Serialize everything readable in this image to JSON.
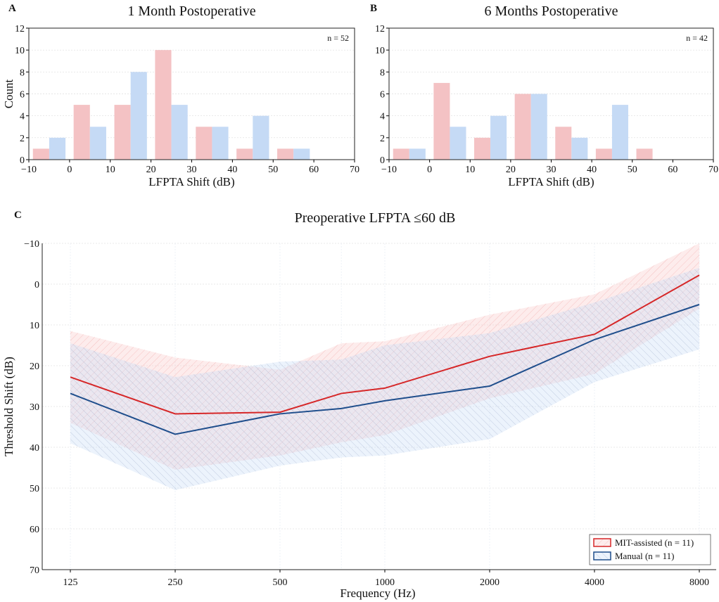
{
  "chart_data": [
    {
      "panel": "A",
      "type": "bar",
      "title": "1 Month Postoperative",
      "annotation": "n = 52",
      "xlabel": "LFPTA Shift (dB)",
      "ylabel": "Count",
      "xlim": [
        -10,
        70
      ],
      "ylim": [
        0,
        12
      ],
      "xticks": [
        -10,
        0,
        10,
        20,
        30,
        40,
        50,
        60,
        70
      ],
      "yticks": [
        0,
        2,
        4,
        6,
        8,
        10,
        12
      ],
      "bin_starts": [
        -10,
        0,
        10,
        20,
        30,
        40,
        50,
        60
      ],
      "series": [
        {
          "name": "MIT-assisted",
          "color": "#f4c2c4",
          "values": [
            1,
            5,
            5,
            10,
            3,
            1,
            1,
            0
          ]
        },
        {
          "name": "Manual",
          "color": "#c5daf5",
          "values": [
            2,
            3,
            8,
            5,
            3,
            4,
            1,
            0
          ]
        }
      ]
    },
    {
      "panel": "B",
      "type": "bar",
      "title": "6 Months Postoperative",
      "annotation": "n = 42",
      "xlabel": "LFPTA Shift (dB)",
      "ylabel": "",
      "xlim": [
        -10,
        70
      ],
      "ylim": [
        0,
        12
      ],
      "xticks": [
        -10,
        0,
        10,
        20,
        30,
        40,
        50,
        60,
        70
      ],
      "yticks": [
        0,
        2,
        4,
        6,
        8,
        10,
        12
      ],
      "bin_starts": [
        -10,
        0,
        10,
        20,
        30,
        40,
        50,
        60
      ],
      "series": [
        {
          "name": "MIT-assisted",
          "color": "#f4c2c4",
          "values": [
            1,
            7,
            2,
            6,
            3,
            1,
            1,
            0
          ]
        },
        {
          "name": "Manual",
          "color": "#c5daf5",
          "values": [
            1,
            3,
            4,
            6,
            2,
            5,
            0,
            0
          ]
        }
      ]
    },
    {
      "panel": "C",
      "type": "line",
      "title": "Preoperative LFPTA ≤60 dB",
      "xlabel": "Frequency (Hz)",
      "ylabel": "Threshold Shift (dB)",
      "xscale": "log2",
      "x": [
        125,
        250,
        500,
        750,
        1000,
        2000,
        4000,
        8000
      ],
      "xticks": [
        125,
        250,
        500,
        1000,
        2000,
        4000,
        8000
      ],
      "yticks": [
        -10,
        0,
        10,
        20,
        30,
        40,
        50,
        60,
        70
      ],
      "ylim": [
        -10,
        70
      ],
      "y_inverted": true,
      "legend_position": "bottom-right",
      "series": [
        {
          "name": "MIT-assisted (n = 11)",
          "color": "#d62728",
          "values": [
            22.8,
            31.8,
            31.4,
            26.8,
            25.5,
            17.7,
            12.3,
            -2.2
          ],
          "band_low": [
            11.5,
            18,
            21,
            14.5,
            14,
            7.5,
            2.5,
            -10
          ],
          "band_high": [
            34,
            45.5,
            42,
            38.8,
            37,
            28,
            22,
            6
          ]
        },
        {
          "name": "Manual (n = 11)",
          "color": "#1f4e8c",
          "values": [
            26.8,
            36.8,
            31.8,
            30.5,
            28.6,
            25,
            13.6,
            5
          ],
          "band_low": [
            14.5,
            22.8,
            19,
            18.5,
            15,
            12,
            4.5,
            -4
          ],
          "band_high": [
            39,
            50.5,
            44.5,
            42.5,
            42,
            38,
            24,
            16
          ]
        }
      ]
    }
  ]
}
